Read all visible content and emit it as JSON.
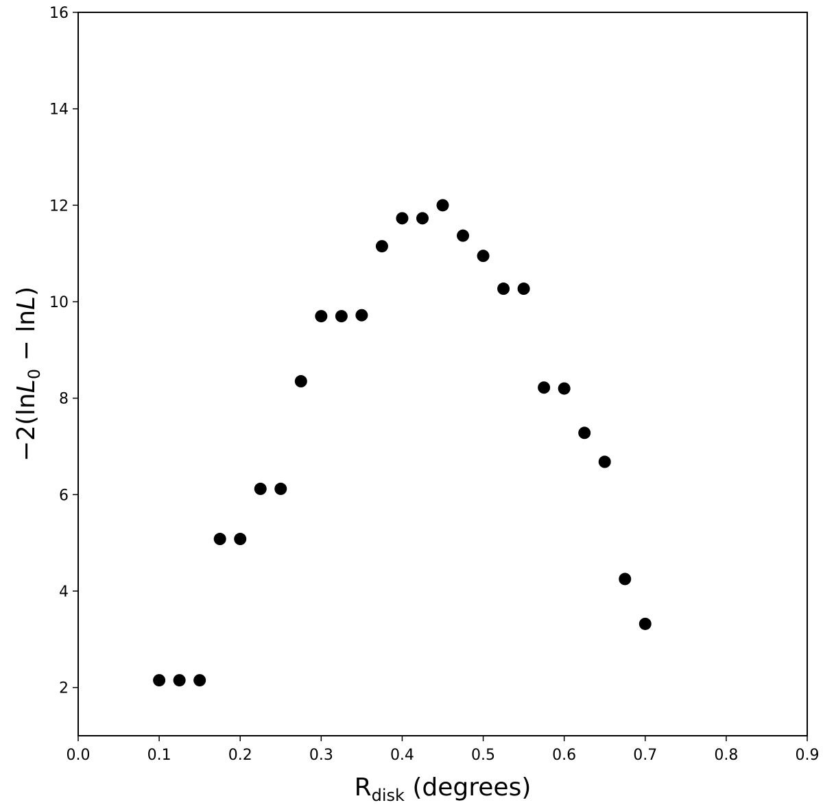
{
  "chart_data": {
    "type": "scatter",
    "xlabel": {
      "main": "R",
      "sub": "disk",
      "rest": " (degrees)"
    },
    "ylabel": {
      "a": "−2(ln",
      "b": "L",
      "c": "0",
      "d": " − ln",
      "e": "L",
      "f": ")"
    },
    "xlim": [
      0.0,
      0.9
    ],
    "ylim": [
      1,
      16
    ],
    "xticks": [
      "0.0",
      "0.1",
      "0.2",
      "0.3",
      "0.4",
      "0.5",
      "0.6",
      "0.7",
      "0.8",
      "0.9"
    ],
    "yticks": [
      "2",
      "4",
      "6",
      "8",
      "10",
      "12",
      "14",
      "16"
    ],
    "grid": false,
    "marker_color": "#000000",
    "series": [
      {
        "x": [
          0.1,
          0.125,
          0.15,
          0.175,
          0.2,
          0.225,
          0.25,
          0.275,
          0.3,
          0.325,
          0.35,
          0.375,
          0.4,
          0.425,
          0.45,
          0.475,
          0.5,
          0.525,
          0.55,
          0.575,
          0.6,
          0.625,
          0.65,
          0.675,
          0.7
        ],
        "y": [
          2.15,
          2.15,
          2.15,
          5.08,
          5.08,
          6.12,
          6.12,
          8.35,
          9.7,
          9.7,
          9.72,
          11.15,
          11.73,
          11.73,
          12.0,
          11.37,
          10.95,
          10.27,
          10.27,
          8.22,
          8.2,
          7.28,
          6.68,
          4.25,
          3.32
        ]
      }
    ]
  }
}
